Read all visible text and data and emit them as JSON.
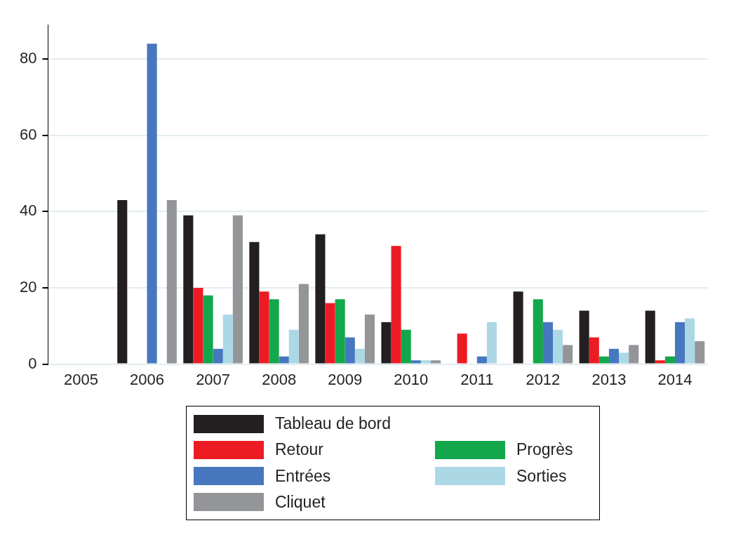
{
  "chart_data": {
    "type": "bar",
    "categories": [
      "2005",
      "2006",
      "2007",
      "2008",
      "2009",
      "2010",
      "2011",
      "2012",
      "2013",
      "2014"
    ],
    "series": [
      {
        "name": "Tableau de bord",
        "color": "#231f20",
        "values": [
          0,
          43,
          39,
          32,
          34,
          11,
          0,
          19,
          14,
          14
        ]
      },
      {
        "name": "Retour",
        "color": "#ed1c24",
        "values": [
          0,
          0,
          20,
          19,
          16,
          31,
          8,
          0,
          7,
          1
        ]
      },
      {
        "name": "Progrès",
        "color": "#12a84b",
        "values": [
          0,
          0,
          18,
          17,
          17,
          9,
          0,
          17,
          2,
          2
        ]
      },
      {
        "name": "Entrées",
        "color": "#4677bf",
        "values": [
          0,
          84,
          4,
          2,
          7,
          1,
          2,
          11,
          4,
          11
        ]
      },
      {
        "name": "Sorties",
        "color": "#acd8e5",
        "values": [
          0,
          0,
          13,
          9,
          4,
          1,
          11,
          9,
          3,
          12
        ]
      },
      {
        "name": "Cliquet",
        "color": "#939598",
        "values": [
          0,
          43,
          39,
          21,
          13,
          1,
          0,
          5,
          5,
          6
        ]
      }
    ],
    "ylim": [
      0,
      89
    ],
    "yticks": [
      0,
      20,
      40,
      60,
      80
    ],
    "grid": "y",
    "legend": "bottom"
  }
}
